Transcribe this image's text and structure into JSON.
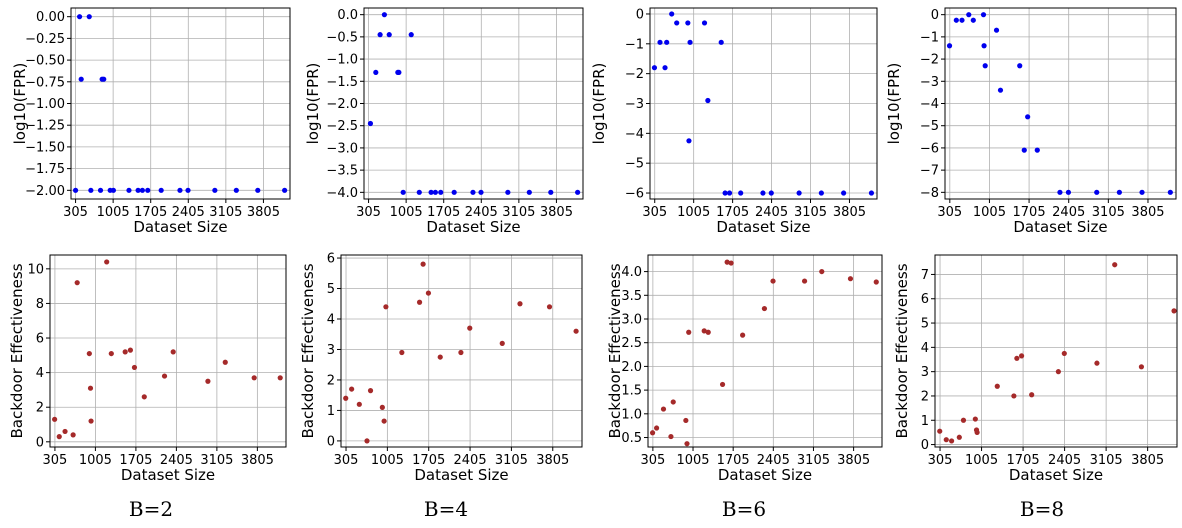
{
  "captions": [
    "B=2",
    "B=4",
    "B=6",
    "B=8"
  ],
  "colors": {
    "fpr_points": "#0000ee",
    "effectiveness_points": "#a52a2a"
  },
  "chart_data": [
    {
      "id": "fpr-b2",
      "type": "scatter",
      "ylabel": "log10(FPR)",
      "xlabel": "Dataset Size",
      "xlim": [
        220,
        4300
      ],
      "ylim": [
        -2.1,
        0.1
      ],
      "xticks": [
        305,
        1005,
        1705,
        2405,
        3105,
        3805
      ],
      "xtick_labels": [
        "305",
        "1005",
        "1705",
        "2405",
        "3105",
        "3805"
      ],
      "yticks": [
        0,
        -0.25,
        -0.5,
        -0.75,
        -1,
        -1.25,
        -1.5,
        -1.75,
        -2
      ],
      "ytick_labels": [
        "0.00",
        "−0.25",
        "−0.50",
        "−0.75",
        "−1.00",
        "−1.25",
        "−1.50",
        "−1.75",
        "−2.00"
      ],
      "points": [
        [
          305,
          -2
        ],
        [
          380,
          0
        ],
        [
          410,
          -0.72
        ],
        [
          560,
          0
        ],
        [
          590,
          -2
        ],
        [
          770,
          -2
        ],
        [
          800,
          -0.72
        ],
        [
          830,
          -0.72
        ],
        [
          950,
          -2
        ],
        [
          1010,
          -2
        ],
        [
          1300,
          -2
        ],
        [
          1470,
          -2
        ],
        [
          1550,
          -2
        ],
        [
          1650,
          -2
        ],
        [
          1900,
          -2
        ],
        [
          2250,
          -2
        ],
        [
          2400,
          -2
        ],
        [
          2900,
          -2
        ],
        [
          3300,
          -2
        ],
        [
          3700,
          -2
        ],
        [
          4200,
          -2
        ]
      ]
    },
    {
      "id": "fpr-b4",
      "type": "scatter",
      "ylabel": "log10(FPR)",
      "xlabel": "Dataset Size",
      "xlim": [
        220,
        4300
      ],
      "ylim": [
        -4.15,
        0.15
      ],
      "xticks": [
        305,
        1005,
        1705,
        2405,
        3105,
        3805
      ],
      "xtick_labels": [
        "305",
        "1005",
        "1705",
        "2405",
        "3105",
        "3805"
      ],
      "yticks": [
        0,
        -0.5,
        -1,
        -1.5,
        -2,
        -2.5,
        -3,
        -3.5,
        -4
      ],
      "ytick_labels": [
        "0.0",
        "−0.5",
        "−1.0",
        "−1.5",
        "−2.0",
        "−2.5",
        "−3.0",
        "−3.5",
        "−4.0"
      ],
      "points": [
        [
          340,
          -2.45
        ],
        [
          440,
          -1.3
        ],
        [
          520,
          -0.45
        ],
        [
          600,
          0
        ],
        [
          690,
          -0.45
        ],
        [
          850,
          -1.3
        ],
        [
          870,
          -1.3
        ],
        [
          950,
          -4
        ],
        [
          1100,
          -0.45
        ],
        [
          1250,
          -4
        ],
        [
          1470,
          -4
        ],
        [
          1550,
          -4
        ],
        [
          1650,
          -4
        ],
        [
          1900,
          -4
        ],
        [
          2250,
          -4
        ],
        [
          2400,
          -4
        ],
        [
          2900,
          -4
        ],
        [
          3300,
          -4
        ],
        [
          3700,
          -4
        ],
        [
          4200,
          -4
        ]
      ]
    },
    {
      "id": "fpr-b6",
      "type": "scatter",
      "ylabel": "log10(FPR)",
      "xlabel": "Dataset Size",
      "xlim": [
        220,
        4300
      ],
      "ylim": [
        -6.2,
        0.2
      ],
      "xticks": [
        305,
        1005,
        1705,
        2405,
        3105,
        3805
      ],
      "xtick_labels": [
        "305",
        "1005",
        "1705",
        "2405",
        "3105",
        "3805"
      ],
      "yticks": [
        0,
        -1,
        -2,
        -3,
        -4,
        -5,
        -6
      ],
      "ytick_labels": [
        "0",
        "−1",
        "−2",
        "−3",
        "−4",
        "−5",
        "−6"
      ],
      "points": [
        [
          300,
          -1.8
        ],
        [
          400,
          -0.95
        ],
        [
          490,
          -1.8
        ],
        [
          520,
          -0.95
        ],
        [
          610,
          0
        ],
        [
          700,
          -0.3
        ],
        [
          900,
          -0.3
        ],
        [
          920,
          -4.25
        ],
        [
          940,
          -0.95
        ],
        [
          1200,
          -0.3
        ],
        [
          1260,
          -2.9
        ],
        [
          1500,
          -0.95
        ],
        [
          1570,
          -6
        ],
        [
          1650,
          -6
        ],
        [
          1850,
          -6
        ],
        [
          2250,
          -6
        ],
        [
          2400,
          -6
        ],
        [
          2900,
          -6
        ],
        [
          3300,
          -6
        ],
        [
          3700,
          -6
        ],
        [
          4200,
          -6
        ]
      ]
    },
    {
      "id": "fpr-b8",
      "type": "scatter",
      "ylabel": "log10(FPR)",
      "xlabel": "Dataset Size",
      "xlim": [
        220,
        4300
      ],
      "ylim": [
        -8.3,
        0.3
      ],
      "xticks": [
        305,
        1005,
        1705,
        2405,
        3105,
        3805
      ],
      "xtick_labels": [
        "305",
        "1005",
        "1705",
        "2405",
        "3105",
        "3805"
      ],
      "yticks": [
        0,
        -1,
        -2,
        -3,
        -4,
        -5,
        -6,
        -7,
        -8
      ],
      "ytick_labels": [
        "0",
        "−1",
        "−2",
        "−3",
        "−4",
        "−5",
        "−6",
        "−7",
        "−8"
      ],
      "points": [
        [
          300,
          -1.4
        ],
        [
          420,
          -0.25
        ],
        [
          520,
          -0.25
        ],
        [
          640,
          0
        ],
        [
          720,
          -0.25
        ],
        [
          900,
          0
        ],
        [
          910,
          -1.4
        ],
        [
          930,
          -2.3
        ],
        [
          1130,
          -0.7
        ],
        [
          1200,
          -3.4
        ],
        [
          1540,
          -2.3
        ],
        [
          1620,
          -6.1
        ],
        [
          1680,
          -4.6
        ],
        [
          1850,
          -6.1
        ],
        [
          2250,
          -8
        ],
        [
          2400,
          -8
        ],
        [
          2900,
          -8
        ],
        [
          3300,
          -8
        ],
        [
          3700,
          -8
        ],
        [
          4200,
          -8
        ]
      ]
    },
    {
      "id": "eff-b2",
      "type": "scatter",
      "ylabel": "Backdoor Effectiveness",
      "xlabel": "Dataset Size",
      "xlim": [
        220,
        4300
      ],
      "ylim": [
        -0.3,
        10.8
      ],
      "xticks": [
        305,
        1005,
        1705,
        2405,
        3105,
        3805
      ],
      "xtick_labels": [
        "305",
        "1005",
        "1705",
        "2405",
        "3105",
        "3805"
      ],
      "yticks": [
        0,
        2,
        4,
        6,
        8,
        10
      ],
      "ytick_labels": [
        "0",
        "2",
        "4",
        "6",
        "8",
        "10"
      ],
      "points": [
        [
          300,
          1.3
        ],
        [
          380,
          0.3
        ],
        [
          480,
          0.6
        ],
        [
          620,
          0.4
        ],
        [
          690,
          9.2
        ],
        [
          900,
          5.1
        ],
        [
          920,
          3.1
        ],
        [
          930,
          1.2
        ],
        [
          1200,
          10.4
        ],
        [
          1280,
          5.1
        ],
        [
          1520,
          5.2
        ],
        [
          1610,
          5.3
        ],
        [
          1680,
          4.3
        ],
        [
          1850,
          2.6
        ],
        [
          2200,
          3.8
        ],
        [
          2350,
          5.2
        ],
        [
          2950,
          3.5
        ],
        [
          3250,
          4.6
        ],
        [
          3750,
          3.7
        ],
        [
          4200,
          3.7
        ]
      ]
    },
    {
      "id": "eff-b4",
      "type": "scatter",
      "ylabel": "Backdoor Effectiveness",
      "xlabel": "Dataset Size",
      "xlim": [
        220,
        4300
      ],
      "ylim": [
        -0.2,
        6.1
      ],
      "xticks": [
        305,
        1005,
        1705,
        2405,
        3105,
        3805
      ],
      "xtick_labels": [
        "305",
        "1005",
        "1705",
        "2405",
        "3105",
        "3805"
      ],
      "yticks": [
        0,
        1,
        2,
        3,
        4,
        5,
        6
      ],
      "ytick_labels": [
        "0",
        "1",
        "2",
        "3",
        "4",
        "5",
        "6"
      ],
      "points": [
        [
          300,
          1.4
        ],
        [
          400,
          1.7
        ],
        [
          530,
          1.2
        ],
        [
          660,
          0
        ],
        [
          720,
          1.65
        ],
        [
          920,
          1.1
        ],
        [
          950,
          0.65
        ],
        [
          980,
          4.4
        ],
        [
          1250,
          2.9
        ],
        [
          1550,
          4.55
        ],
        [
          1610,
          5.8
        ],
        [
          1700,
          4.85
        ],
        [
          1900,
          2.75
        ],
        [
          2250,
          2.9
        ],
        [
          2400,
          3.7
        ],
        [
          2950,
          3.2
        ],
        [
          3250,
          4.5
        ],
        [
          3750,
          4.4
        ],
        [
          4200,
          3.6
        ]
      ]
    },
    {
      "id": "eff-b6",
      "type": "scatter",
      "ylabel": "Backdoor Effectiveness",
      "xlabel": "Dataset Size",
      "xlim": [
        220,
        4300
      ],
      "ylim": [
        0.3,
        4.35
      ],
      "xticks": [
        305,
        1005,
        1705,
        2405,
        3105,
        3805
      ],
      "xtick_labels": [
        "305",
        "1005",
        "1705",
        "2405",
        "3105",
        "3805"
      ],
      "yticks": [
        0.5,
        1,
        1.5,
        2,
        2.5,
        3,
        3.5,
        4
      ],
      "ytick_labels": [
        "0.5",
        "1.0",
        "1.5",
        "2.0",
        "2.5",
        "3.0",
        "3.5",
        "4.0"
      ],
      "points": [
        [
          300,
          0.6
        ],
        [
          370,
          0.7
        ],
        [
          490,
          1.1
        ],
        [
          620,
          0.52
        ],
        [
          660,
          1.25
        ],
        [
          880,
          0.86
        ],
        [
          900,
          0.37
        ],
        [
          930,
          2.72
        ],
        [
          1200,
          2.75
        ],
        [
          1270,
          2.72
        ],
        [
          1520,
          1.62
        ],
        [
          1600,
          4.2
        ],
        [
          1670,
          4.18
        ],
        [
          1870,
          2.66
        ],
        [
          2250,
          3.22
        ],
        [
          2400,
          3.8
        ],
        [
          2950,
          3.8
        ],
        [
          3250,
          4.0
        ],
        [
          3750,
          3.85
        ],
        [
          4200,
          3.78
        ]
      ]
    },
    {
      "id": "eff-b8",
      "type": "scatter",
      "ylabel": "Backdoor Effectiveness",
      "xlabel": "Dataset Size",
      "xlim": [
        220,
        4300
      ],
      "ylim": [
        -0.1,
        7.8
      ],
      "xticks": [
        305,
        1005,
        1705,
        2405,
        3105,
        3805
      ],
      "xtick_labels": [
        "305",
        "1005",
        "1705",
        "2405",
        "3105",
        "3805"
      ],
      "yticks": [
        0,
        1,
        2,
        3,
        4,
        5,
        6,
        7
      ],
      "ytick_labels": [
        "0",
        "1",
        "2",
        "3",
        "4",
        "5",
        "6",
        "7"
      ],
      "points": [
        [
          300,
          0.55
        ],
        [
          410,
          0.2
        ],
        [
          500,
          0.15
        ],
        [
          630,
          0.3
        ],
        [
          700,
          1.0
        ],
        [
          900,
          1.05
        ],
        [
          920,
          0.6
        ],
        [
          930,
          0.5
        ],
        [
          1270,
          2.4
        ],
        [
          1550,
          2.0
        ],
        [
          1600,
          3.55
        ],
        [
          1680,
          3.65
        ],
        [
          1850,
          2.05
        ],
        [
          2300,
          3.0
        ],
        [
          2400,
          3.75
        ],
        [
          2950,
          3.35
        ],
        [
          3250,
          7.4
        ],
        [
          3700,
          3.2
        ],
        [
          4250,
          5.5
        ]
      ]
    }
  ]
}
